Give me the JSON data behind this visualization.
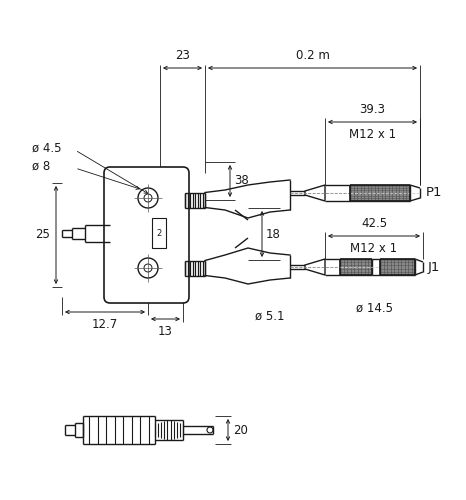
{
  "bg_color": "#ffffff",
  "line_color": "#1a1a1a",
  "dim_color": "#1a1a1a",
  "font_size_dim": 8.5,
  "dimensions": {
    "dim_23": "23",
    "dim_02m": "0.2 m",
    "dim_393": "39.3",
    "dim_M12x1_top": "M12 x 1",
    "dim_38": "38",
    "dim_18": "18",
    "dim_425": "42.5",
    "dim_M12x1_bot": "M12 x 1",
    "dim_51": "ø 5.1",
    "dim_145": "ø 14.5",
    "dim_45": "ø 4.5",
    "dim_8": "ø 8",
    "dim_25": "25",
    "dim_127": "12.7",
    "dim_13": "13",
    "dim_20": "20",
    "label_P1": "P1",
    "label_J1": "J1"
  }
}
